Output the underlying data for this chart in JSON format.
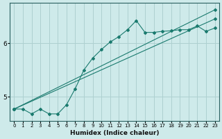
{
  "xlabel": "Humidex (Indice chaleur)",
  "bg_color": "#ceeaea",
  "grid_color": "#aed0d0",
  "line_color": "#1a7a6e",
  "xlim": [
    -0.5,
    23.5
  ],
  "ylim": [
    4.55,
    6.75
  ],
  "xticks": [
    0,
    1,
    2,
    3,
    4,
    5,
    6,
    7,
    8,
    9,
    10,
    11,
    12,
    13,
    14,
    15,
    16,
    17,
    18,
    19,
    20,
    21,
    22,
    23
  ],
  "yticks": [
    5,
    6
  ],
  "line1_x": [
    0,
    1,
    2,
    3,
    4,
    5,
    6,
    7,
    8,
    9,
    10,
    11,
    12,
    13,
    14,
    15,
    16,
    17,
    18,
    19,
    20,
    21,
    22,
    23
  ],
  "line1_y": [
    4.77,
    4.77,
    4.68,
    4.77,
    4.68,
    4.68,
    4.85,
    5.15,
    5.5,
    5.72,
    5.88,
    6.02,
    6.12,
    6.25,
    6.42,
    6.2,
    6.2,
    6.22,
    6.23,
    6.25,
    6.25,
    6.32,
    6.22,
    6.28
  ],
  "line2_x": [
    0,
    23
  ],
  "line2_y": [
    4.77,
    6.62
  ],
  "line3_x": [
    0,
    23
  ],
  "line3_y": [
    4.77,
    6.45
  ]
}
